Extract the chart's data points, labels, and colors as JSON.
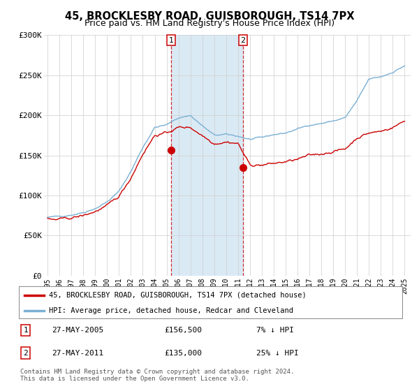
{
  "title": "45, BROCKLESBY ROAD, GUISBOROUGH, TS14 7PX",
  "subtitle": "Price paid vs. HM Land Registry's House Price Index (HPI)",
  "ylim": [
    0,
    300000
  ],
  "yticks": [
    0,
    50000,
    100000,
    150000,
    200000,
    250000,
    300000
  ],
  "ytick_labels": [
    "£0",
    "£50K",
    "£100K",
    "£150K",
    "£200K",
    "£250K",
    "£300K"
  ],
  "xlim_start": 1994.7,
  "xlim_end": 2025.5,
  "title_fontsize": 10.5,
  "subtitle_fontsize": 9,
  "line_color_red": "#cc0000",
  "line_color_blue": "#7ab0d4",
  "sale1_x": 2005.4,
  "sale1_y": 156500,
  "sale2_x": 2011.4,
  "sale2_y": 135000,
  "sale1_date": "27-MAY-2005",
  "sale1_price": "£156,500",
  "sale1_hpi": "7% ↓ HPI",
  "sale2_date": "27-MAY-2011",
  "sale2_price": "£135,000",
  "sale2_hpi": "25% ↓ HPI",
  "shade_color": "#daeaf5",
  "grid_color": "#cccccc",
  "bg_color": "#ffffff",
  "legend_line1": "45, BROCKLESBY ROAD, GUISBOROUGH, TS14 7PX (detached house)",
  "legend_line2": "HPI: Average price, detached house, Redcar and Cleveland",
  "footer": "Contains HM Land Registry data © Crown copyright and database right 2024.\nThis data is licensed under the Open Government Licence v3.0.",
  "hpi_anchors_x": [
    1995,
    1996,
    1997,
    1998,
    1999,
    2000,
    2001,
    2002,
    2003,
    2004,
    2005,
    2006,
    2007,
    2008,
    2009,
    2010,
    2011,
    2012,
    2013,
    2014,
    2015,
    2016,
    2017,
    2018,
    2019,
    2020,
    2021,
    2022,
    2023,
    2024,
    2025
  ],
  "hpi_anchors_y": [
    72000,
    74000,
    76000,
    79000,
    84000,
    92000,
    105000,
    130000,
    160000,
    185000,
    188000,
    197000,
    200000,
    187000,
    175000,
    176000,
    174000,
    170000,
    172000,
    176000,
    178000,
    183000,
    188000,
    190000,
    193000,
    197000,
    218000,
    245000,
    248000,
    254000,
    262000
  ],
  "red_anchors_x": [
    1995,
    1996,
    1997,
    1998,
    1999,
    2000,
    2001,
    2002,
    2003,
    2004,
    2005,
    2006,
    2007,
    2008,
    2009,
    2010,
    2011,
    2012,
    2013,
    2014,
    2015,
    2016,
    2017,
    2018,
    2019,
    2020,
    2021,
    2022,
    2023,
    2024,
    2025
  ],
  "red_anchors_y": [
    68000,
    70000,
    72000,
    75000,
    80000,
    87000,
    99000,
    122000,
    152000,
    175000,
    178000,
    185000,
    185000,
    175000,
    165000,
    167000,
    165000,
    138000,
    138000,
    140000,
    142000,
    145000,
    150000,
    152000,
    155000,
    158000,
    172000,
    178000,
    180000,
    185000,
    193000
  ]
}
